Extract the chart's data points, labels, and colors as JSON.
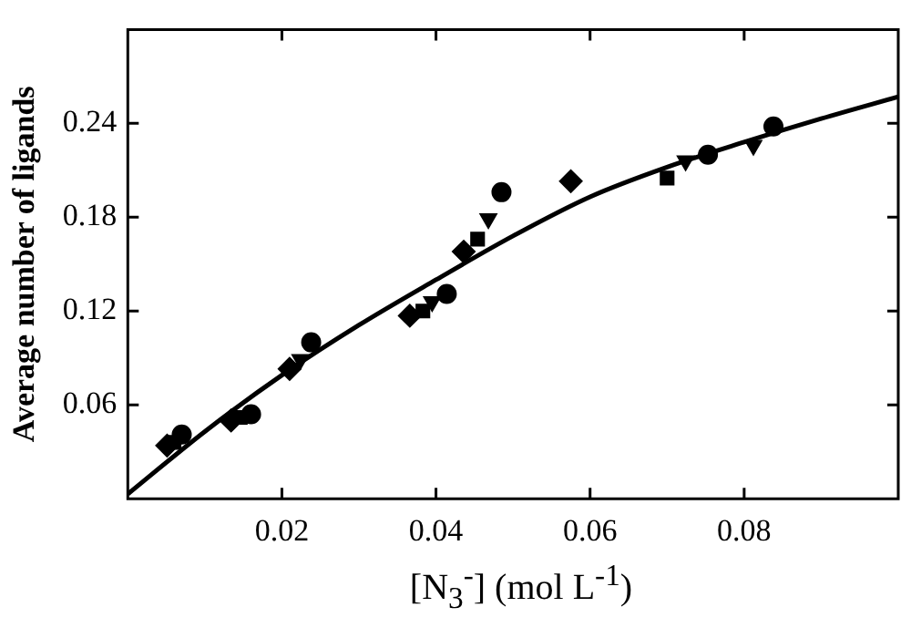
{
  "chart_data": {
    "type": "scatter",
    "xlabel": "[N$_{3}$$^{-}$] (mol L$^{-1}$)",
    "ylabel": "Average number of ligands",
    "xlim": [
      0,
      0.1
    ],
    "ylim": [
      0,
      0.3
    ],
    "xticks": [
      0.02,
      0.04,
      0.06,
      0.08
    ],
    "yticks": [
      0.06,
      0.12,
      0.18,
      0.24
    ],
    "grid": false,
    "legend": false,
    "series": [
      {
        "color": "#000000",
        "marker": "circle",
        "x": [
          0.007,
          0.016,
          0.0238,
          0.0414,
          0.0485,
          0.0753,
          0.0838
        ],
        "values": [
          0.041,
          0.054,
          0.1,
          0.131,
          0.196,
          0.22,
          0.238
        ]
      },
      {
        "color": "#000000",
        "marker": "square",
        "x": [
          0.006,
          0.0146,
          0.0383,
          0.0454,
          0.07
        ],
        "values": [
          0.036,
          0.052,
          0.12,
          0.166,
          0.205
        ]
      },
      {
        "color": "#000000",
        "marker": "triangle",
        "x": [
          0.0224,
          0.0395,
          0.0468,
          0.0724,
          0.0812
        ],
        "values": [
          0.089,
          0.126,
          0.179,
          0.216,
          0.226
        ]
      },
      {
        "color": "#000000",
        "marker": "diamond",
        "x": [
          0.0051,
          0.0134,
          0.021,
          0.0366,
          0.0436,
          0.0575
        ],
        "values": [
          0.034,
          0.05,
          0.083,
          0.117,
          0.158,
          0.203
        ]
      },
      {
        "type": "line",
        "color": "#000000",
        "marker": "none",
        "x": [
          0,
          0.01,
          0.02,
          0.03,
          0.04,
          0.05,
          0.06,
          0.07,
          0.08,
          0.09,
          0.1
        ],
        "values": [
          0.003,
          0.043,
          0.079,
          0.111,
          0.14,
          0.168,
          0.193,
          0.212,
          0.228,
          0.243,
          0.257
        ]
      }
    ]
  }
}
